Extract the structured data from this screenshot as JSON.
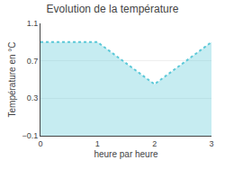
{
  "chart_data": {
    "type": "area",
    "title": "Evolution de la température",
    "x": [
      0,
      1,
      2,
      3
    ],
    "values": [
      0.9,
      0.9,
      0.45,
      0.9
    ],
    "color": "#5bc8d8",
    "line_style": "dotted",
    "xlabel": "heure par heure",
    "ylabel": "Température en °C",
    "xlim": [
      0,
      3
    ],
    "ylim": [
      -0.1,
      1.1
    ],
    "xticks": [
      0,
      1,
      2,
      3
    ],
    "yticks": [
      -0.1,
      0.3,
      0.7,
      1.1
    ],
    "grid": "y"
  }
}
